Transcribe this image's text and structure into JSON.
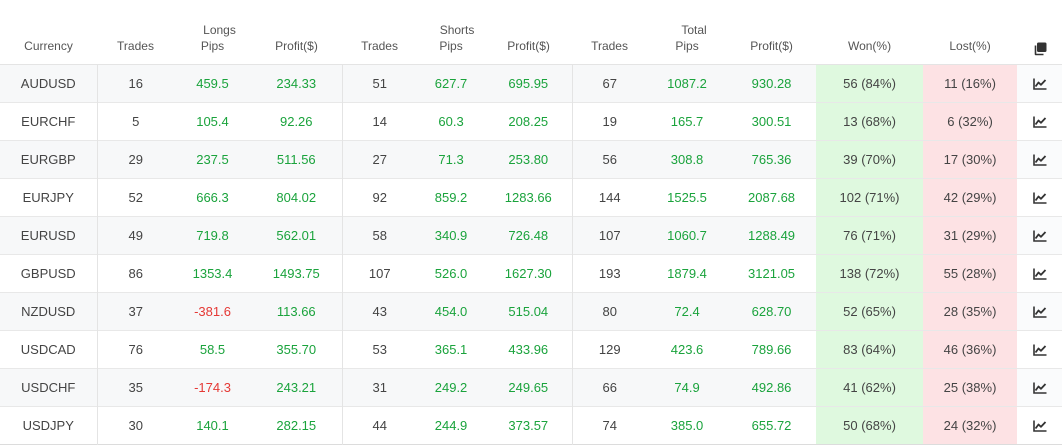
{
  "headers": {
    "groups": {
      "longs": "Longs",
      "shorts": "Shorts",
      "total": "Total"
    },
    "columns": {
      "currency": "Currency",
      "longs_trades": "Trades",
      "longs_pips": "Pips",
      "longs_profit": "Profit($)",
      "shorts_trades": "Trades",
      "shorts_pips": "Pips",
      "shorts_profit": "Profit($)",
      "total_trades": "Trades",
      "total_pips": "Pips",
      "total_profit": "Profit($)",
      "won": "Won(%)",
      "lost": "Lost(%)"
    },
    "copy_icon": "copy-icon"
  },
  "colors": {
    "positive": "#1aa33c",
    "negative": "#e53935",
    "won_bg": "#dff9df",
    "lost_bg": "#fde2e4"
  },
  "rows": [
    {
      "currency": "AUDUSD",
      "longs_trades": "16",
      "longs_pips": "459.5",
      "longs_profit": "234.33",
      "shorts_trades": "51",
      "shorts_pips": "627.7",
      "shorts_profit": "695.95",
      "total_trades": "67",
      "total_pips": "1087.2",
      "total_profit": "930.28",
      "won": "56 (84%)",
      "lost": "11 (16%)",
      "icon": "chart-line-icon"
    },
    {
      "currency": "EURCHF",
      "longs_trades": "5",
      "longs_pips": "105.4",
      "longs_profit": "92.26",
      "shorts_trades": "14",
      "shorts_pips": "60.3",
      "shorts_profit": "208.25",
      "total_trades": "19",
      "total_pips": "165.7",
      "total_profit": "300.51",
      "won": "13 (68%)",
      "lost": "6 (32%)",
      "icon": "chart-line-icon"
    },
    {
      "currency": "EURGBP",
      "longs_trades": "29",
      "longs_pips": "237.5",
      "longs_profit": "511.56",
      "shorts_trades": "27",
      "shorts_pips": "71.3",
      "shorts_profit": "253.80",
      "total_trades": "56",
      "total_pips": "308.8",
      "total_profit": "765.36",
      "won": "39 (70%)",
      "lost": "17 (30%)",
      "icon": "chart-line-icon"
    },
    {
      "currency": "EURJPY",
      "longs_trades": "52",
      "longs_pips": "666.3",
      "longs_profit": "804.02",
      "shorts_trades": "92",
      "shorts_pips": "859.2",
      "shorts_profit": "1283.66",
      "total_trades": "144",
      "total_pips": "1525.5",
      "total_profit": "2087.68",
      "won": "102 (71%)",
      "lost": "42 (29%)",
      "icon": "chart-line-icon"
    },
    {
      "currency": "EURUSD",
      "longs_trades": "49",
      "longs_pips": "719.8",
      "longs_profit": "562.01",
      "shorts_trades": "58",
      "shorts_pips": "340.9",
      "shorts_profit": "726.48",
      "total_trades": "107",
      "total_pips": "1060.7",
      "total_profit": "1288.49",
      "won": "76 (71%)",
      "lost": "31 (29%)",
      "icon": "chart-line-icon"
    },
    {
      "currency": "GBPUSD",
      "longs_trades": "86",
      "longs_pips": "1353.4",
      "longs_profit": "1493.75",
      "shorts_trades": "107",
      "shorts_pips": "526.0",
      "shorts_profit": "1627.30",
      "total_trades": "193",
      "total_pips": "1879.4",
      "total_profit": "3121.05",
      "won": "138 (72%)",
      "lost": "55 (28%)",
      "icon": "chart-line-icon"
    },
    {
      "currency": "NZDUSD",
      "longs_trades": "37",
      "longs_pips": "-381.6",
      "longs_profit": "113.66",
      "shorts_trades": "43",
      "shorts_pips": "454.0",
      "shorts_profit": "515.04",
      "total_trades": "80",
      "total_pips": "72.4",
      "total_profit": "628.70",
      "won": "52 (65%)",
      "lost": "28 (35%)",
      "icon": "chart-line-icon"
    },
    {
      "currency": "USDCAD",
      "longs_trades": "76",
      "longs_pips": "58.5",
      "longs_profit": "355.70",
      "shorts_trades": "53",
      "shorts_pips": "365.1",
      "shorts_profit": "433.96",
      "total_trades": "129",
      "total_pips": "423.6",
      "total_profit": "789.66",
      "won": "83 (64%)",
      "lost": "46 (36%)",
      "icon": "chart-line-icon"
    },
    {
      "currency": "USDCHF",
      "longs_trades": "35",
      "longs_pips": "-174.3",
      "longs_profit": "243.21",
      "shorts_trades": "31",
      "shorts_pips": "249.2",
      "shorts_profit": "249.65",
      "total_trades": "66",
      "total_pips": "74.9",
      "total_profit": "492.86",
      "won": "41 (62%)",
      "lost": "25 (38%)",
      "icon": "chart-line-icon"
    },
    {
      "currency": "USDJPY",
      "longs_trades": "30",
      "longs_pips": "140.1",
      "longs_profit": "282.15",
      "shorts_trades": "44",
      "shorts_pips": "244.9",
      "shorts_profit": "373.57",
      "total_trades": "74",
      "total_pips": "385.0",
      "total_profit": "655.72",
      "won": "50 (68%)",
      "lost": "24 (32%)",
      "icon": "chart-line-icon"
    }
  ]
}
